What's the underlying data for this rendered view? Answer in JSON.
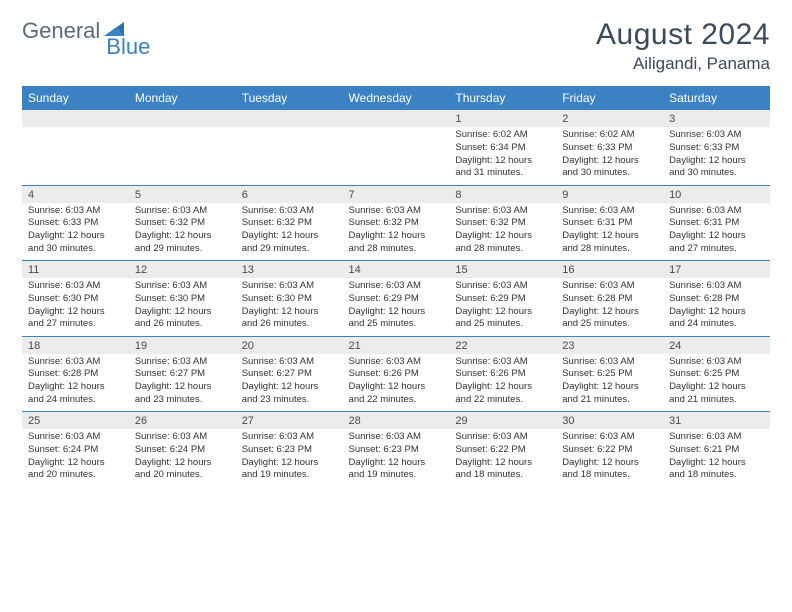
{
  "brand": {
    "part1": "General",
    "part2": "Blue"
  },
  "title": "August 2024",
  "location": "Ailigandi, Panama",
  "colors": {
    "header_bg": "#3a82c4",
    "header_text": "#ffffff",
    "daynum_bg": "#ececec",
    "daynum_text": "#4a4a4a",
    "border": "#3a82c4",
    "body_text": "#333333",
    "title_text": "#3a4a5a",
    "brand_gray": "#5a6b7a",
    "brand_blue": "#3a82c4"
  },
  "day_labels": [
    "Sunday",
    "Monday",
    "Tuesday",
    "Wednesday",
    "Thursday",
    "Friday",
    "Saturday"
  ],
  "weeks": [
    {
      "nums": [
        "",
        "",
        "",
        "",
        "1",
        "2",
        "3"
      ],
      "cells": [
        null,
        null,
        null,
        null,
        {
          "sunrise": "6:02 AM",
          "sunset": "6:34 PM",
          "daylight": "12 hours and 31 minutes."
        },
        {
          "sunrise": "6:02 AM",
          "sunset": "6:33 PM",
          "daylight": "12 hours and 30 minutes."
        },
        {
          "sunrise": "6:03 AM",
          "sunset": "6:33 PM",
          "daylight": "12 hours and 30 minutes."
        }
      ]
    },
    {
      "nums": [
        "4",
        "5",
        "6",
        "7",
        "8",
        "9",
        "10"
      ],
      "cells": [
        {
          "sunrise": "6:03 AM",
          "sunset": "6:33 PM",
          "daylight": "12 hours and 30 minutes."
        },
        {
          "sunrise": "6:03 AM",
          "sunset": "6:32 PM",
          "daylight": "12 hours and 29 minutes."
        },
        {
          "sunrise": "6:03 AM",
          "sunset": "6:32 PM",
          "daylight": "12 hours and 29 minutes."
        },
        {
          "sunrise": "6:03 AM",
          "sunset": "6:32 PM",
          "daylight": "12 hours and 28 minutes."
        },
        {
          "sunrise": "6:03 AM",
          "sunset": "6:32 PM",
          "daylight": "12 hours and 28 minutes."
        },
        {
          "sunrise": "6:03 AM",
          "sunset": "6:31 PM",
          "daylight": "12 hours and 28 minutes."
        },
        {
          "sunrise": "6:03 AM",
          "sunset": "6:31 PM",
          "daylight": "12 hours and 27 minutes."
        }
      ]
    },
    {
      "nums": [
        "11",
        "12",
        "13",
        "14",
        "15",
        "16",
        "17"
      ],
      "cells": [
        {
          "sunrise": "6:03 AM",
          "sunset": "6:30 PM",
          "daylight": "12 hours and 27 minutes."
        },
        {
          "sunrise": "6:03 AM",
          "sunset": "6:30 PM",
          "daylight": "12 hours and 26 minutes."
        },
        {
          "sunrise": "6:03 AM",
          "sunset": "6:30 PM",
          "daylight": "12 hours and 26 minutes."
        },
        {
          "sunrise": "6:03 AM",
          "sunset": "6:29 PM",
          "daylight": "12 hours and 25 minutes."
        },
        {
          "sunrise": "6:03 AM",
          "sunset": "6:29 PM",
          "daylight": "12 hours and 25 minutes."
        },
        {
          "sunrise": "6:03 AM",
          "sunset": "6:28 PM",
          "daylight": "12 hours and 25 minutes."
        },
        {
          "sunrise": "6:03 AM",
          "sunset": "6:28 PM",
          "daylight": "12 hours and 24 minutes."
        }
      ]
    },
    {
      "nums": [
        "18",
        "19",
        "20",
        "21",
        "22",
        "23",
        "24"
      ],
      "cells": [
        {
          "sunrise": "6:03 AM",
          "sunset": "6:28 PM",
          "daylight": "12 hours and 24 minutes."
        },
        {
          "sunrise": "6:03 AM",
          "sunset": "6:27 PM",
          "daylight": "12 hours and 23 minutes."
        },
        {
          "sunrise": "6:03 AM",
          "sunset": "6:27 PM",
          "daylight": "12 hours and 23 minutes."
        },
        {
          "sunrise": "6:03 AM",
          "sunset": "6:26 PM",
          "daylight": "12 hours and 22 minutes."
        },
        {
          "sunrise": "6:03 AM",
          "sunset": "6:26 PM",
          "daylight": "12 hours and 22 minutes."
        },
        {
          "sunrise": "6:03 AM",
          "sunset": "6:25 PM",
          "daylight": "12 hours and 21 minutes."
        },
        {
          "sunrise": "6:03 AM",
          "sunset": "6:25 PM",
          "daylight": "12 hours and 21 minutes."
        }
      ]
    },
    {
      "nums": [
        "25",
        "26",
        "27",
        "28",
        "29",
        "30",
        "31"
      ],
      "cells": [
        {
          "sunrise": "6:03 AM",
          "sunset": "6:24 PM",
          "daylight": "12 hours and 20 minutes."
        },
        {
          "sunrise": "6:03 AM",
          "sunset": "6:24 PM",
          "daylight": "12 hours and 20 minutes."
        },
        {
          "sunrise": "6:03 AM",
          "sunset": "6:23 PM",
          "daylight": "12 hours and 19 minutes."
        },
        {
          "sunrise": "6:03 AM",
          "sunset": "6:23 PM",
          "daylight": "12 hours and 19 minutes."
        },
        {
          "sunrise": "6:03 AM",
          "sunset": "6:22 PM",
          "daylight": "12 hours and 18 minutes."
        },
        {
          "sunrise": "6:03 AM",
          "sunset": "6:22 PM",
          "daylight": "12 hours and 18 minutes."
        },
        {
          "sunrise": "6:03 AM",
          "sunset": "6:21 PM",
          "daylight": "12 hours and 18 minutes."
        }
      ]
    }
  ]
}
